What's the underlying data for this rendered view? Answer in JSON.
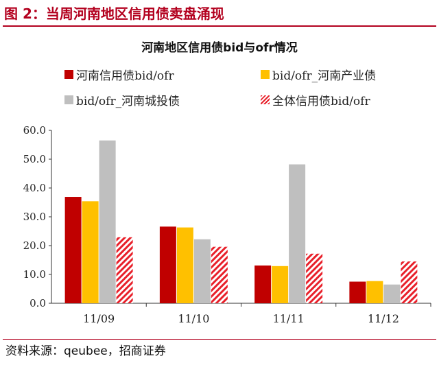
{
  "figure_title": "图 2：当周河南地区信用债卖盘涌现",
  "source": "资料来源：qeubee，招商证券",
  "colors": {
    "title_red": "#b3001e",
    "series_red": "#c00000",
    "series_yellow": "#ffc000",
    "series_gray": "#bfbfbf",
    "series_hatch": "#e8202a"
  },
  "chart_data": {
    "type": "bar",
    "title": "河南地区信用债bid与ofr情况",
    "categories": [
      "11/09",
      "11/10",
      "11/11",
      "11/12"
    ],
    "series": [
      {
        "name": "河南信用债bid/ofr",
        "values": [
          36.9,
          26.6,
          13.1,
          7.5
        ],
        "color": "#c00000",
        "pattern": "solid"
      },
      {
        "name": "bid/ofr_河南产业债",
        "values": [
          35.4,
          26.3,
          12.9,
          7.7
        ],
        "color": "#ffc000",
        "pattern": "solid"
      },
      {
        "name": "bid/ofr_河南城投债",
        "values": [
          56.5,
          22.2,
          48.2,
          6.5
        ],
        "color": "#bfbfbf",
        "pattern": "solid"
      },
      {
        "name": "全体信用债bid/ofr",
        "values": [
          22.9,
          19.6,
          17.2,
          14.5
        ],
        "color": "#e8202a",
        "pattern": "hatch"
      }
    ],
    "ylim": [
      0,
      60
    ],
    "yticks": [
      "0.0",
      "10.0",
      "20.0",
      "30.0",
      "40.0",
      "50.0",
      "60.0"
    ],
    "xlabel": "",
    "ylabel": "",
    "grid": false,
    "legend_position": "top"
  }
}
